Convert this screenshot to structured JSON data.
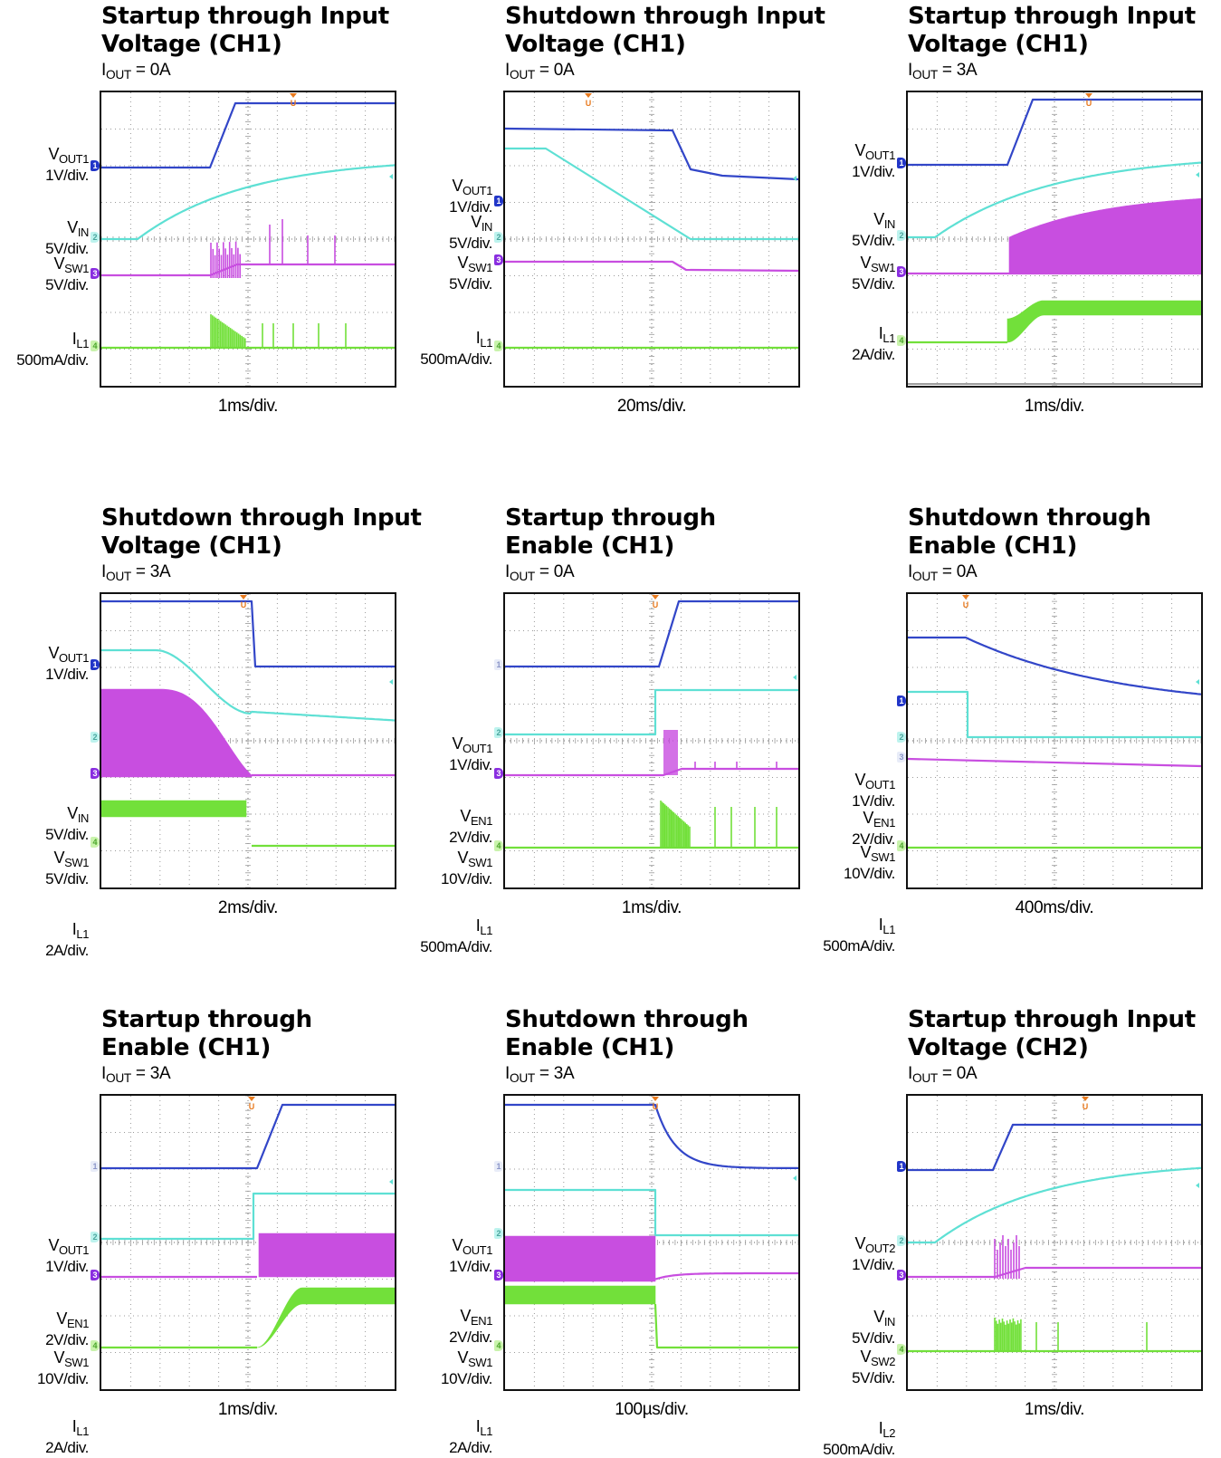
{
  "colors": {
    "vout": "#3246c8",
    "vin": "#5ee0d4",
    "vsw": "#c84ee0",
    "il": "#72e03a",
    "trigger": "#e87a1e",
    "grid": "#9a9a9a"
  },
  "panels": [
    {
      "title": [
        "Startup through Input",
        "Voltage (CH1)"
      ],
      "cond": {
        "pre": "I",
        "sub": "OUT",
        "post": " = 0A"
      },
      "timebase": "1ms/div.",
      "channels": [
        {
          "pre": "V",
          "sub": "OUT1",
          "scale": "1V/div.",
          "marker": "1"
        },
        {
          "pre": "V",
          "sub": "IN",
          "scale": "5V/div.",
          "marker": "2"
        },
        {
          "pre": "V",
          "sub": "SW1",
          "scale": "5V/div.",
          "marker": "3"
        },
        {
          "pre": "I",
          "sub": "L1",
          "scale": "500mA/div.",
          "marker": "4"
        }
      ]
    },
    {
      "title": [
        "Shutdown through Input",
        "Voltage (CH1)"
      ],
      "cond": {
        "pre": "I",
        "sub": "OUT",
        "post": " = 0A"
      },
      "timebase": "20ms/div.",
      "channels": [
        {
          "pre": "V",
          "sub": "OUT1",
          "scale": "1V/div.",
          "marker": "1"
        },
        {
          "pre": "V",
          "sub": "IN",
          "scale": "5V/div.",
          "marker": "2"
        },
        {
          "pre": "V",
          "sub": "SW1",
          "scale": "5V/div.",
          "marker": "3"
        },
        {
          "pre": "I",
          "sub": "L1",
          "scale": "500mA/div.",
          "marker": "4"
        }
      ]
    },
    {
      "title": [
        "Startup through Input",
        "Voltage (CH1)"
      ],
      "cond": {
        "pre": "I",
        "sub": "OUT",
        "post": " = 3A"
      },
      "timebase": "1ms/div.",
      "channels": [
        {
          "pre": "V",
          "sub": "OUT1",
          "scale": "1V/div.",
          "marker": "1"
        },
        {
          "pre": "V",
          "sub": "IN",
          "scale": "5V/div.",
          "marker": "2"
        },
        {
          "pre": "V",
          "sub": "SW1",
          "scale": "5V/div.",
          "marker": "3"
        },
        {
          "pre": "I",
          "sub": "L1",
          "scale": "2A/div.",
          "marker": "4"
        }
      ]
    },
    {
      "title": [
        "Shutdown through Input",
        "Voltage (CH1)"
      ],
      "cond": {
        "pre": "I",
        "sub": "OUT",
        "post": " = 3A"
      },
      "timebase": "2ms/div.",
      "channels": [
        {
          "pre": "V",
          "sub": "OUT1",
          "scale": "1V/div.",
          "marker": "1"
        },
        {
          "pre": "V",
          "sub": "IN",
          "scale": "5V/div.",
          "marker": "2"
        },
        {
          "pre": "V",
          "sub": "SW1",
          "scale": "5V/div.",
          "marker": "3"
        },
        {
          "pre": "I",
          "sub": "L1",
          "scale": "2A/div.",
          "marker": "4"
        }
      ]
    },
    {
      "title": [
        "Startup through",
        "Enable (CH1)"
      ],
      "cond": {
        "pre": "I",
        "sub": "OUT",
        "post": " = 0A"
      },
      "timebase": "1ms/div.",
      "channels": [
        {
          "pre": "V",
          "sub": "OUT1",
          "scale": "1V/div.",
          "marker": "1"
        },
        {
          "pre": "V",
          "sub": "EN1",
          "scale": "2V/div.",
          "marker": "2"
        },
        {
          "pre": "V",
          "sub": "SW1",
          "scale": "10V/div.",
          "marker": "3"
        },
        {
          "pre": "I",
          "sub": "L1",
          "scale": "500mA/div.",
          "marker": "4"
        }
      ]
    },
    {
      "title": [
        "Shutdown through",
        "Enable (CH1)"
      ],
      "cond": {
        "pre": "I",
        "sub": "OUT",
        "post": " = 0A"
      },
      "timebase": "400ms/div.",
      "channels": [
        {
          "pre": "V",
          "sub": "OUT1",
          "scale": "1V/div.",
          "marker": "1"
        },
        {
          "pre": "V",
          "sub": "EN1",
          "scale": "2V/div.",
          "marker": "2"
        },
        {
          "pre": "V",
          "sub": "SW1",
          "scale": "10V/div.",
          "marker": "3"
        },
        {
          "pre": "I",
          "sub": "L1",
          "scale": "500mA/div.",
          "marker": "4"
        }
      ]
    },
    {
      "title": [
        "Startup through",
        "Enable (CH1)"
      ],
      "cond": {
        "pre": "I",
        "sub": "OUT",
        "post": " = 3A"
      },
      "timebase": "1ms/div.",
      "channels": [
        {
          "pre": "V",
          "sub": "OUT1",
          "scale": "1V/div.",
          "marker": "1"
        },
        {
          "pre": "V",
          "sub": "EN1",
          "scale": "2V/div.",
          "marker": "2"
        },
        {
          "pre": "V",
          "sub": "SW1",
          "scale": "10V/div.",
          "marker": "3"
        },
        {
          "pre": "I",
          "sub": "L1",
          "scale": "2A/div.",
          "marker": "4"
        }
      ]
    },
    {
      "title": [
        "Shutdown through",
        "Enable (CH1)"
      ],
      "cond": {
        "pre": "I",
        "sub": "OUT",
        "post": " = 3A"
      },
      "timebase": "100µs/div.",
      "channels": [
        {
          "pre": "V",
          "sub": "OUT1",
          "scale": "1V/div.",
          "marker": "1"
        },
        {
          "pre": "V",
          "sub": "EN1",
          "scale": "2V/div.",
          "marker": "2"
        },
        {
          "pre": "V",
          "sub": "SW1",
          "scale": "10V/div.",
          "marker": "3"
        },
        {
          "pre": "I",
          "sub": "L1",
          "scale": "2A/div.",
          "marker": "4"
        }
      ]
    },
    {
      "title": [
        "Startup through Input",
        "Voltage (CH2)"
      ],
      "cond": {
        "pre": "I",
        "sub": "OUT",
        "post": " = 0A"
      },
      "timebase": "1ms/div.",
      "channels": [
        {
          "pre": "V",
          "sub": "OUT2",
          "scale": "1V/div.",
          "marker": "1"
        },
        {
          "pre": "V",
          "sub": "IN",
          "scale": "5V/div.",
          "marker": "2"
        },
        {
          "pre": "V",
          "sub": "SW2",
          "scale": "5V/div.",
          "marker": "3"
        },
        {
          "pre": "I",
          "sub": "L2",
          "scale": "500mA/div.",
          "marker": "4"
        }
      ]
    }
  ]
}
